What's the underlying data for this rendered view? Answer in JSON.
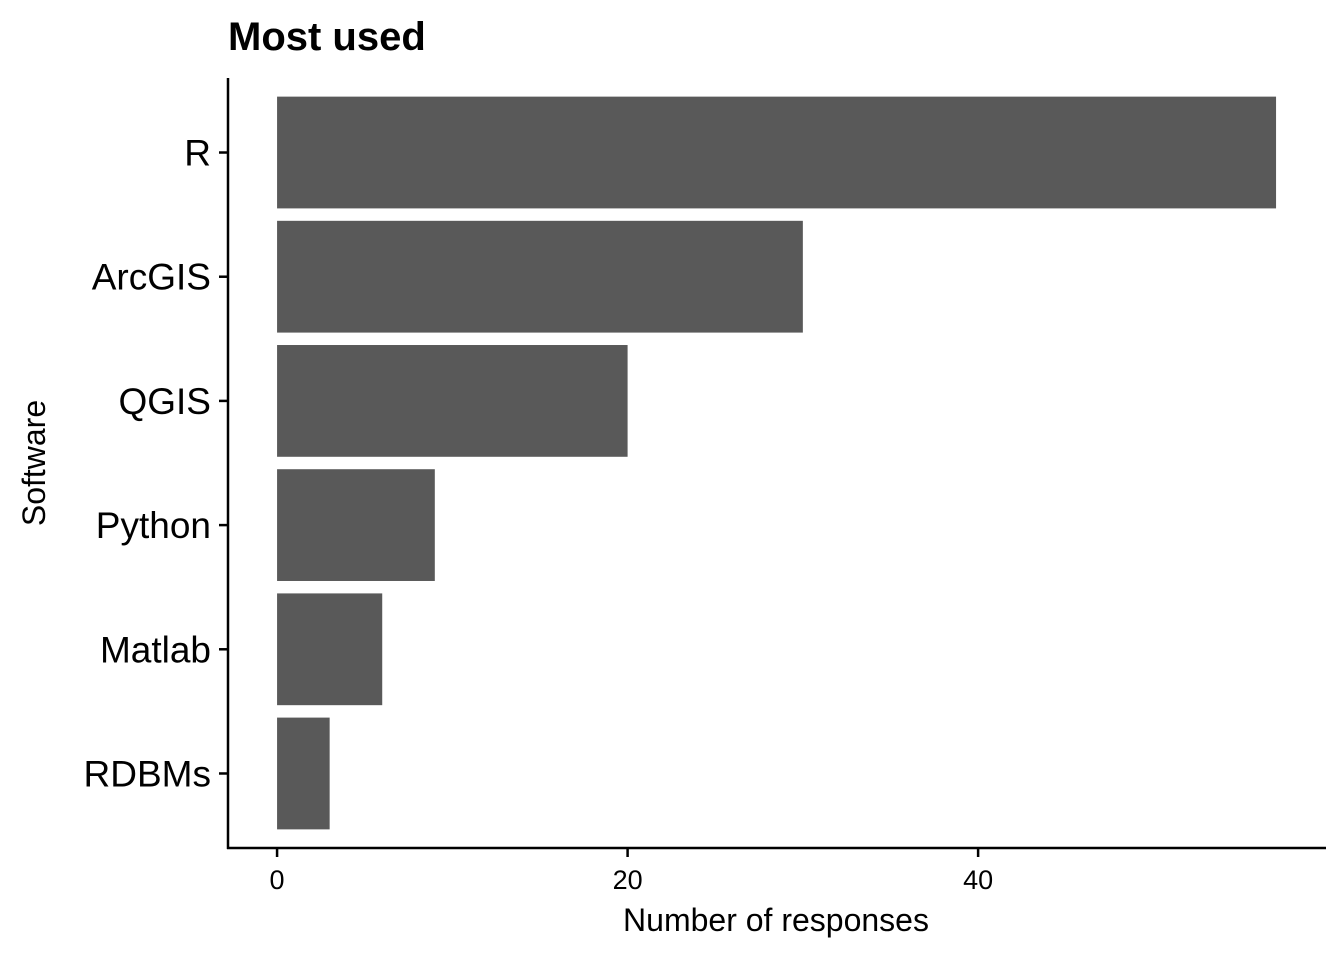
{
  "chart_data": {
    "type": "bar",
    "orientation": "horizontal",
    "title": "Most used",
    "xlabel": "Number of responses",
    "ylabel": "Software",
    "categories": [
      "R",
      "ArcGIS",
      "QGIS",
      "Python",
      "Matlab",
      "RDBMs"
    ],
    "values": [
      57,
      30,
      20,
      9,
      6,
      3
    ],
    "xlim": [
      -2.8,
      59.85
    ],
    "xticks": [
      0,
      20,
      40
    ],
    "grid": false,
    "legend": "none",
    "bar_color": "#595959"
  }
}
